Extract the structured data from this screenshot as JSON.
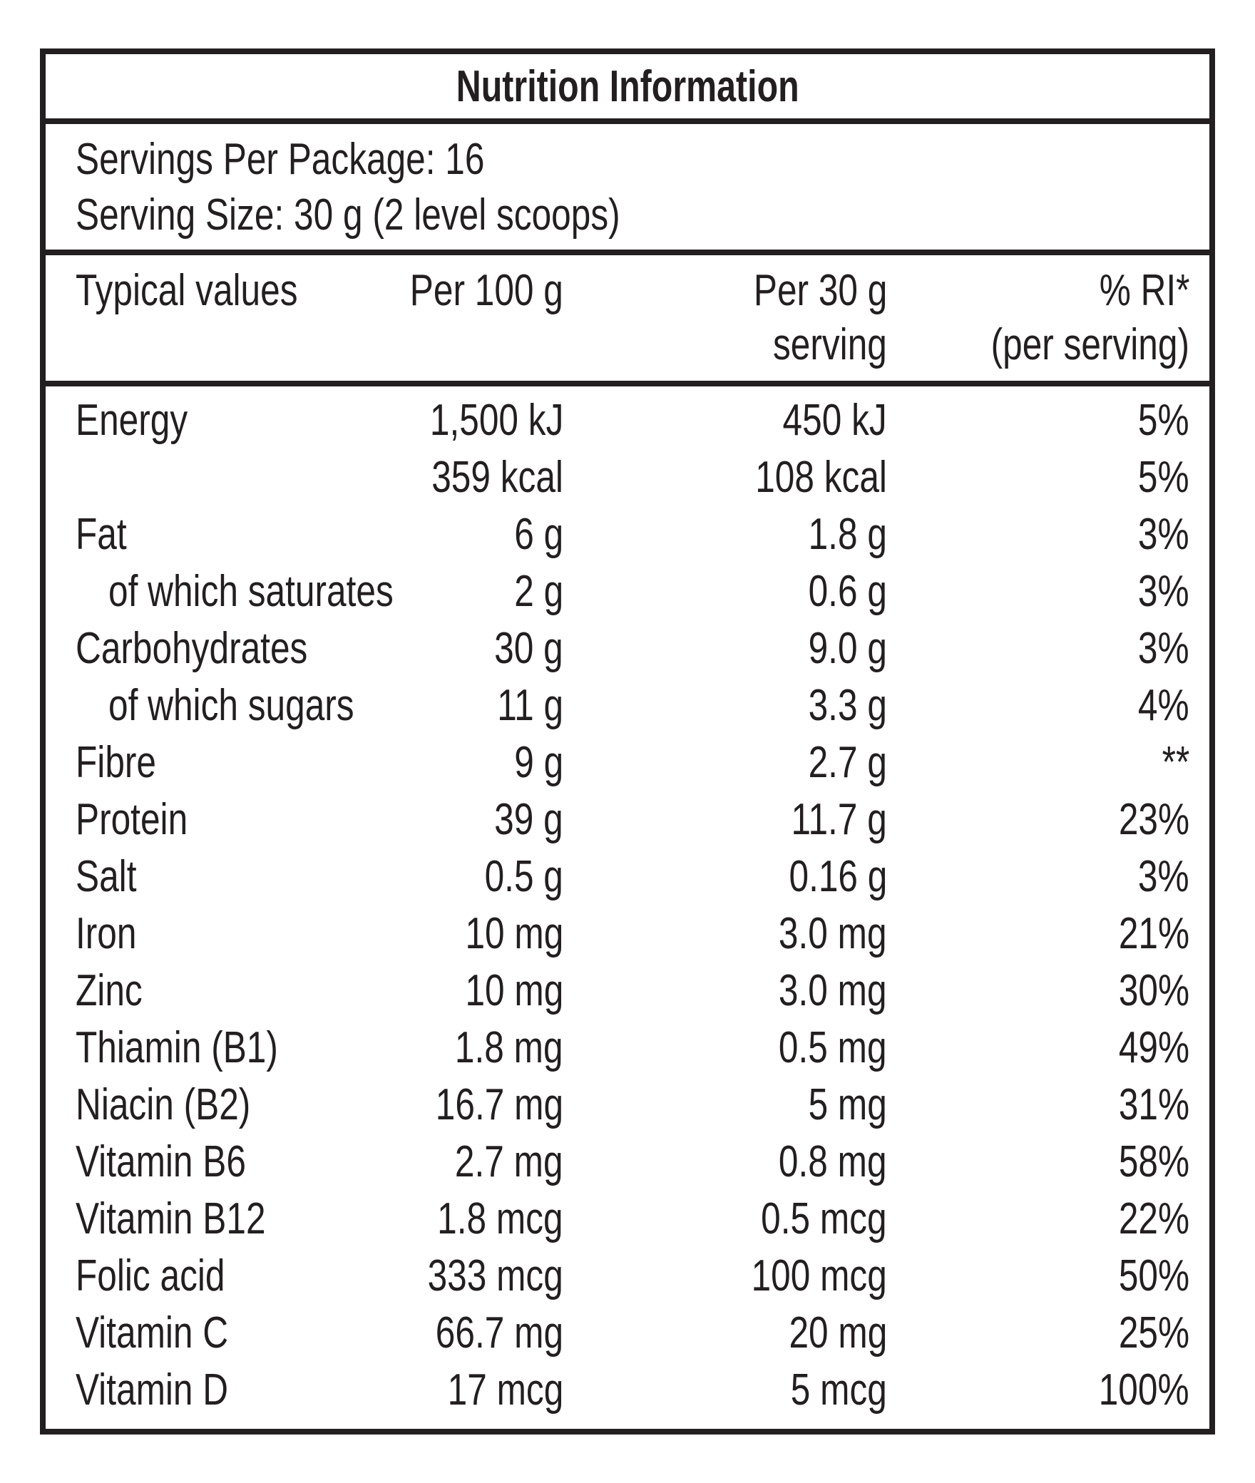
{
  "title": "Nutrition Information",
  "servings_per_package": "Servings Per Package: 16",
  "serving_size": "Serving Size: 30 g (2 level scoops)",
  "header": {
    "col1": "Typical values",
    "col2": "Per 100 g",
    "col3_line1": "Per 30 g",
    "col3_line2": "serving",
    "col4_line1": "% RI*",
    "col4_line2": "(per serving)"
  },
  "rows": [
    {
      "name": "Energy",
      "per100": "1,500 kJ",
      "perServing": "450 kJ",
      "ri": "5%",
      "indent": false
    },
    {
      "name": "",
      "per100": "359 kcal",
      "perServing": "108 kcal",
      "ri": "5%",
      "indent": false
    },
    {
      "name": "Fat",
      "per100": "6 g",
      "perServing": "1.8 g",
      "ri": "3%",
      "indent": false
    },
    {
      "name": "of which saturates",
      "per100": "2 g",
      "perServing": "0.6 g",
      "ri": "3%",
      "indent": true
    },
    {
      "name": "Carbohydrates",
      "per100": "30 g",
      "perServing": "9.0 g",
      "ri": "3%",
      "indent": false
    },
    {
      "name": "of which sugars",
      "per100": "11 g",
      "perServing": "3.3 g",
      "ri": "4%",
      "indent": true
    },
    {
      "name": "Fibre",
      "per100": "9 g",
      "perServing": "2.7 g",
      "ri": "**",
      "indent": false
    },
    {
      "name": "Protein",
      "per100": "39 g",
      "perServing": "11.7 g",
      "ri": "23%",
      "indent": false
    },
    {
      "name": "Salt",
      "per100": "0.5 g",
      "perServing": "0.16 g",
      "ri": "3%",
      "indent": false
    },
    {
      "name": "Iron",
      "per100": "10 mg",
      "perServing": "3.0 mg",
      "ri": "21%",
      "indent": false
    },
    {
      "name": "Zinc",
      "per100": "10 mg",
      "perServing": "3.0 mg",
      "ri": "30%",
      "indent": false
    },
    {
      "name": "Thiamin (B1)",
      "per100": "1.8 mg",
      "perServing": "0.5 mg",
      "ri": "49%",
      "indent": false
    },
    {
      "name": "Niacin (B2)",
      "per100": "16.7 mg",
      "perServing": "5 mg",
      "ri": "31%",
      "indent": false
    },
    {
      "name": "Vitamin B6",
      "per100": "2.7 mg",
      "perServing": "0.8 mg",
      "ri": "58%",
      "indent": false
    },
    {
      "name": "Vitamin B12",
      "per100": "1.8 mcg",
      "perServing": "0.5 mcg",
      "ri": "22%",
      "indent": false
    },
    {
      "name": "Folic acid",
      "per100": "333 mcg",
      "perServing": "100 mcg",
      "ri": "50%",
      "indent": false
    },
    {
      "name": "Vitamin C",
      "per100": "66.7 mg",
      "perServing": "20 mg",
      "ri": "25%",
      "indent": false
    },
    {
      "name": "Vitamin D",
      "per100": "17  mcg",
      "perServing": "5 mcg",
      "ri": "100%",
      "indent": false
    }
  ]
}
